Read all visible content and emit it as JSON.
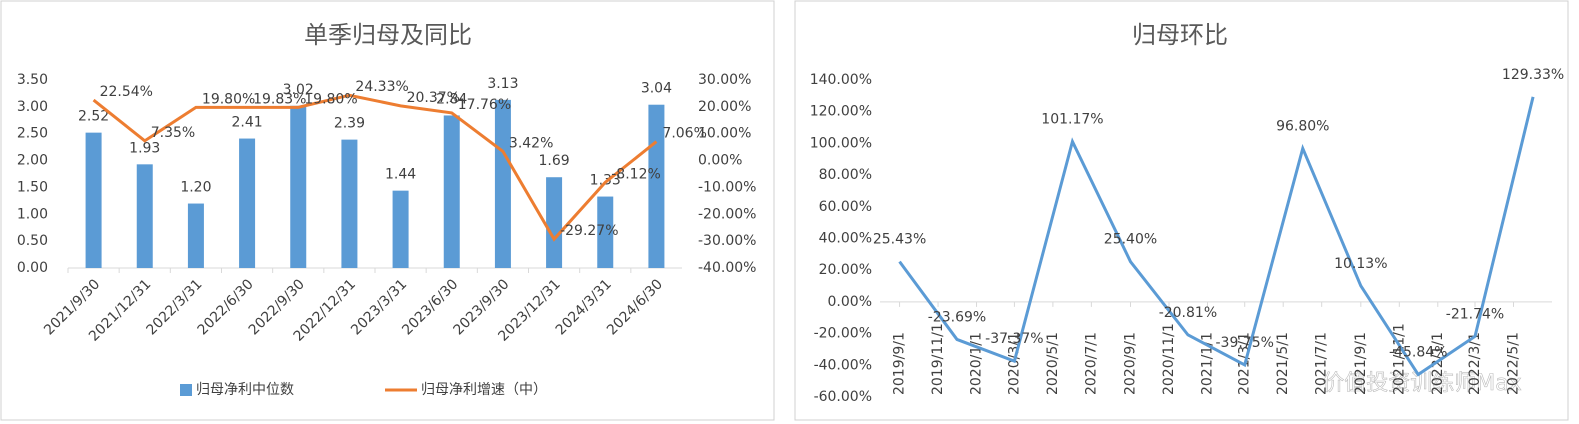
{
  "chart_data": [
    {
      "type": "bar_line",
      "title": "单季归母及同比",
      "categories": [
        "2021/9/30",
        "2021/12/31",
        "2022/3/31",
        "2022/6/30",
        "2022/9/30",
        "2022/12/31",
        "2023/3/31",
        "2023/6/30",
        "2023/9/30",
        "2023/12/31",
        "2024/3/31",
        "2024/6/30"
      ],
      "series": [
        {
          "name": "归母净利中位数",
          "color": "#5b9bd5",
          "axis": "y",
          "values": [
            2.52,
            1.93,
            1.2,
            2.41,
            3.02,
            2.39,
            1.44,
            2.84,
            3.13,
            1.69,
            1.33,
            3.04
          ],
          "value_labels": [
            "2.52",
            "1.93",
            "1.20",
            "2.41",
            "3.02",
            "2.39",
            "1.44",
            "2.84",
            "3.13",
            "1.69",
            "1.33",
            "3.04"
          ]
        },
        {
          "name": "归母净利增速（中）",
          "color": "#ed7d31",
          "axis": "y2",
          "values": [
            22.54,
            7.35,
            19.8,
            19.83,
            19.8,
            24.33,
            20.37,
            17.76,
            3.42,
            -29.27,
            -8.12,
            7.06
          ],
          "value_labels": [
            "22.54%",
            "7.35%",
            "19.80%",
            "19.83%",
            "19.80%",
            "24.33%",
            "20.37%",
            "17.76%",
            "3.42%",
            "-29.27%",
            "-8.12%",
            "7.06%"
          ]
        }
      ],
      "ylim": [
        0,
        3.5
      ],
      "yticks": [
        {
          "value": 0,
          "label": "0.00"
        },
        {
          "value": 0.5,
          "label": "0.50"
        },
        {
          "value": 1,
          "label": "1.00"
        },
        {
          "value": 1.5,
          "label": "1.50"
        },
        {
          "value": 2,
          "label": "2.00"
        },
        {
          "value": 2.5,
          "label": "2.50"
        },
        {
          "value": 3,
          "label": "3.00"
        },
        {
          "value": 3.5,
          "label": "3.50"
        }
      ],
      "y2lim": [
        -40,
        30
      ],
      "y2ticks": [
        {
          "value": -40,
          "label": "-40.00%"
        },
        {
          "value": -30,
          "label": "-30.00%"
        },
        {
          "value": -20,
          "label": "-20.00%"
        },
        {
          "value": -10,
          "label": "-10.00%"
        },
        {
          "value": 0,
          "label": "0.00%"
        },
        {
          "value": 10,
          "label": "10.00%"
        },
        {
          "value": 20,
          "label": "20.00%"
        },
        {
          "value": 30,
          "label": "30.00%"
        }
      ],
      "legend": "bottom"
    },
    {
      "type": "line",
      "title": "归母环比",
      "x": [
        "2019/9/1",
        "2019/12/1",
        "2020/3/1",
        "2020/6/1",
        "2020/9/1",
        "2020/12/1",
        "2021/3/1",
        "2021/6/1",
        "2021/9/1",
        "2021/12/1",
        "2022/3/1",
        "2022/6/1"
      ],
      "series": [
        {
          "color": "#5b9bd5",
          "values": [
            25.43,
            -23.69,
            -37.37,
            101.17,
            25.4,
            -20.81,
            -39.75,
            96.8,
            10.13,
            -45.84,
            -21.74,
            129.33
          ],
          "value_labels": [
            "25.43%",
            "-23.69%",
            "-37.37%",
            "101.17%",
            "25.40%",
            "-20.81%",
            "-39.75%",
            "96.80%",
            "10.13%",
            "-45.84%",
            "-21.74%",
            "129.33%"
          ]
        }
      ],
      "xlim": [
        "2019/8/1",
        "2022/7/1"
      ],
      "xticks": [
        "2019/9/1",
        "2019/11/1",
        "2020/1/1",
        "2020/3/1",
        "2020/5/1",
        "2020/7/1",
        "2020/9/1",
        "2020/11/1",
        "2021/1/1",
        "2021/3/1",
        "2021/5/1",
        "2021/7/1",
        "2021/9/1",
        "2021/11/1",
        "2022/1/1",
        "2022/3/1",
        "2022/5/1"
      ],
      "ylim": [
        -60,
        140
      ],
      "yticks": [
        {
          "value": -60,
          "label": "-60.00%"
        },
        {
          "value": -40,
          "label": "-40.00%"
        },
        {
          "value": -20,
          "label": "-20.00%"
        },
        {
          "value": 0,
          "label": "0.00%"
        },
        {
          "value": 20,
          "label": "20.00%"
        },
        {
          "value": 40,
          "label": "40.00%"
        },
        {
          "value": 60,
          "label": "60.00%"
        },
        {
          "value": 80,
          "label": "80.00%"
        },
        {
          "value": 100,
          "label": "100.00%"
        },
        {
          "value": 120,
          "label": "120.00%"
        },
        {
          "value": 140,
          "label": "140.00%"
        }
      ],
      "grid": false
    }
  ],
  "watermark": "价值投资训练师Max"
}
